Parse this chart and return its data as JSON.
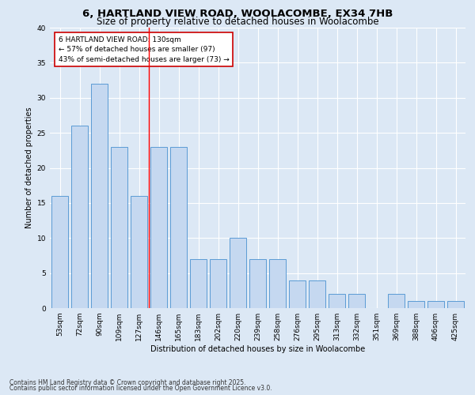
{
  "title_line1": "6, HARTLAND VIEW ROAD, WOOLACOMBE, EX34 7HB",
  "title_line2": "Size of property relative to detached houses in Woolacombe",
  "xlabel": "Distribution of detached houses by size in Woolacombe",
  "ylabel": "Number of detached properties",
  "categories": [
    "53sqm",
    "72sqm",
    "90sqm",
    "109sqm",
    "127sqm",
    "146sqm",
    "165sqm",
    "183sqm",
    "202sqm",
    "220sqm",
    "239sqm",
    "258sqm",
    "276sqm",
    "295sqm",
    "313sqm",
    "332sqm",
    "351sqm",
    "369sqm",
    "388sqm",
    "406sqm",
    "425sqm"
  ],
  "values": [
    16,
    26,
    32,
    23,
    16,
    23,
    23,
    7,
    7,
    10,
    7,
    7,
    4,
    4,
    2,
    2,
    0,
    2,
    1,
    1,
    1
  ],
  "bar_color": "#c5d8f0",
  "bar_edge_color": "#5b9bd5",
  "red_line_index": 4.5,
  "annotation_text": "6 HARTLAND VIEW ROAD: 130sqm\n← 57% of detached houses are smaller (97)\n43% of semi-detached houses are larger (73) →",
  "annotation_box_color": "#ffffff",
  "annotation_box_edge_color": "#cc0000",
  "background_color": "#dce8f5",
  "plot_bg_color": "#dce8f5",
  "grid_color": "#ffffff",
  "footer_line1": "Contains HM Land Registry data © Crown copyright and database right 2025.",
  "footer_line2": "Contains public sector information licensed under the Open Government Licence v3.0.",
  "ylim": [
    0,
    40
  ],
  "yticks": [
    0,
    5,
    10,
    15,
    20,
    25,
    30,
    35,
    40
  ],
  "title_fontsize": 9.5,
  "subtitle_fontsize": 8.5,
  "axis_label_fontsize": 7,
  "tick_fontsize": 6.5,
  "annotation_fontsize": 6.5,
  "footer_fontsize": 5.5
}
